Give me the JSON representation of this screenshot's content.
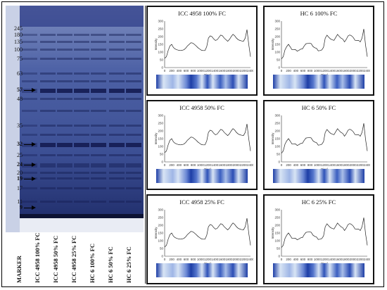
{
  "gel": {
    "markers": [
      "245",
      "180",
      "135",
      "100",
      "75",
      "63",
      "57",
      "48",
      "35",
      "32",
      "25",
      "24",
      "20",
      "19",
      "17",
      "11",
      "9"
    ],
    "arrow_markers": [
      "57",
      "32",
      "24",
      "19",
      "9"
    ],
    "lanes": [
      "MARKER",
      "ICC 4958 100% FC",
      "ICC 4958 50% FC",
      "ICC 4958 25% FC",
      "HC 6 100% FC",
      "HC 6 50% FC",
      "HC 6 25% FC"
    ]
  },
  "panels": [
    {
      "title": "ICC 4958 100% FC"
    },
    {
      "title": "HC 6 100% FC"
    },
    {
      "title": "ICC 4958 50% FC"
    },
    {
      "title": "HC 6 50% FC"
    },
    {
      "title": "ICC 4958 25% FC"
    },
    {
      "title": "HC 6 25% FC"
    }
  ],
  "axis": {
    "ylabel": "Intensity",
    "xlabel": "Pixel",
    "yticks": [
      "0",
      "50",
      "100",
      "150",
      "200",
      "250",
      "300"
    ],
    "xticks": [
      "0",
      "200",
      "400",
      "600",
      "800",
      "1000",
      "1200",
      "1400",
      "1600",
      "1800",
      "2000",
      "2200",
      "2400"
    ]
  },
  "colors": {
    "gel_bg": "#3b4f8f",
    "band": "#16205a",
    "strip_light": "#d8e4f4",
    "strip_dark": "#1d3ea6"
  }
}
